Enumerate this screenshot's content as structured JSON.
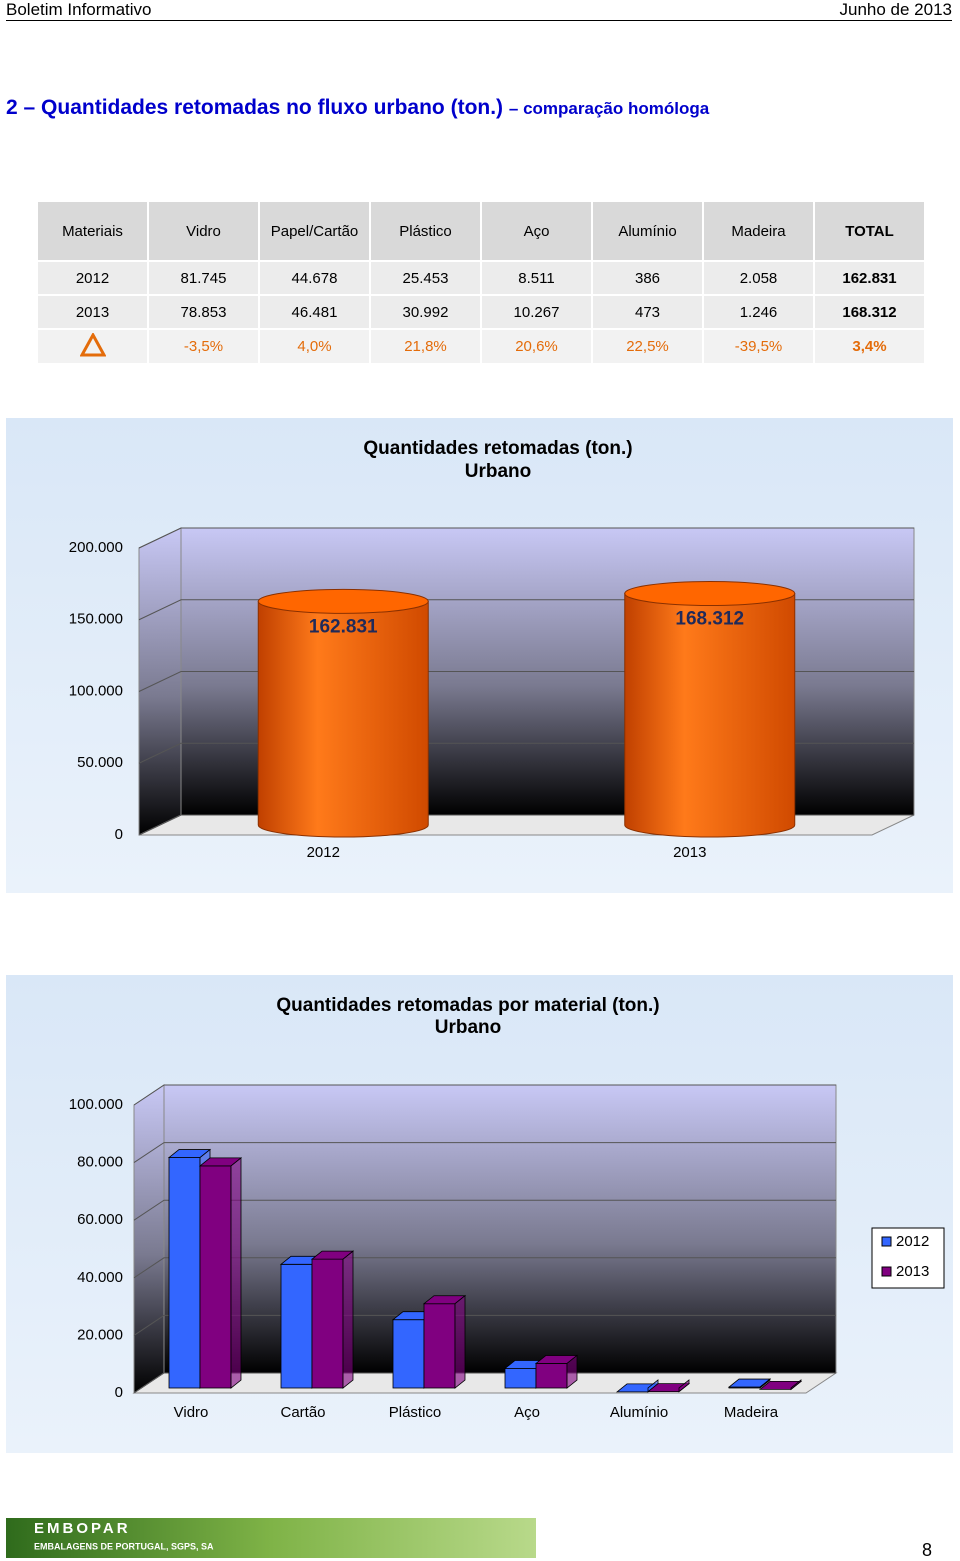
{
  "header": {
    "left": "Boletim Informativo",
    "right": "Junho de 2013"
  },
  "section": {
    "title": "2 – Quantidades retomadas no fluxo urbano (ton.)",
    "suffix": "– comparação homóloga"
  },
  "table": {
    "columns": [
      "Materiais",
      "Vidro",
      "Papel/Cartão",
      "Plástico",
      "Aço",
      "Alumínio",
      "Madeira",
      "TOTAL"
    ],
    "rows": [
      [
        "2012",
        "81.745",
        "44.678",
        "25.453",
        "8.511",
        "386",
        "2.058",
        "162.831"
      ],
      [
        "2013",
        "78.853",
        "46.481",
        "30.992",
        "10.267",
        "473",
        "1.246",
        "168.312"
      ]
    ],
    "variation": [
      "-3,5%",
      "4,0%",
      "21,8%",
      "20,6%",
      "22,5%",
      "-39,5%",
      "3,4%"
    ]
  },
  "chart_data": [
    {
      "type": "bar",
      "bar_shape": "cylinder",
      "title": "Quantidades retomadas (ton.)",
      "subtitle": "Urbano",
      "categories": [
        "2012",
        "2013"
      ],
      "values": [
        162831,
        168312
      ],
      "value_labels": [
        "162.831",
        "168.312"
      ],
      "color": "#ff6600",
      "ylim": [
        0,
        200000
      ],
      "yticks": [
        0,
        {
          "value": 50000,
          "label": "50.000"
        },
        {
          "value": 100000,
          "label": "100.000"
        },
        {
          "value": 150000,
          "label": "150.000"
        },
        {
          "value": 200000,
          "label": "200.000"
        }
      ],
      "grid": true
    },
    {
      "type": "bar",
      "bar_shape": "box",
      "title": "Quantidades retomadas por material (ton.)",
      "subtitle": "Urbano",
      "categories": [
        "Vidro",
        "Cartão",
        "Plástico",
        "Aço",
        "Alumínio",
        "Madeira"
      ],
      "series": [
        {
          "name": "2012",
          "color": "#3366ff",
          "values": [
            81745,
            44678,
            25453,
            8511,
            386,
            2058
          ]
        },
        {
          "name": "2013",
          "color": "#800080",
          "values": [
            78853,
            46481,
            30992,
            10267,
            473,
            1246
          ]
        }
      ],
      "ylim": [
        0,
        100000
      ],
      "yticks": [
        0,
        {
          "value": 20000,
          "label": "20.000"
        },
        {
          "value": 40000,
          "label": "40.000"
        },
        {
          "value": 60000,
          "label": "60.000"
        },
        {
          "value": 80000,
          "label": "80.000"
        },
        {
          "value": 100000,
          "label": "100.000"
        }
      ],
      "grid": true,
      "legend": "right"
    }
  ],
  "footer": {
    "logo": "EMBOPAR",
    "logo_sub": "EMBALAGENS DE PORTUGAL, SGPS, SA",
    "page": "8"
  }
}
